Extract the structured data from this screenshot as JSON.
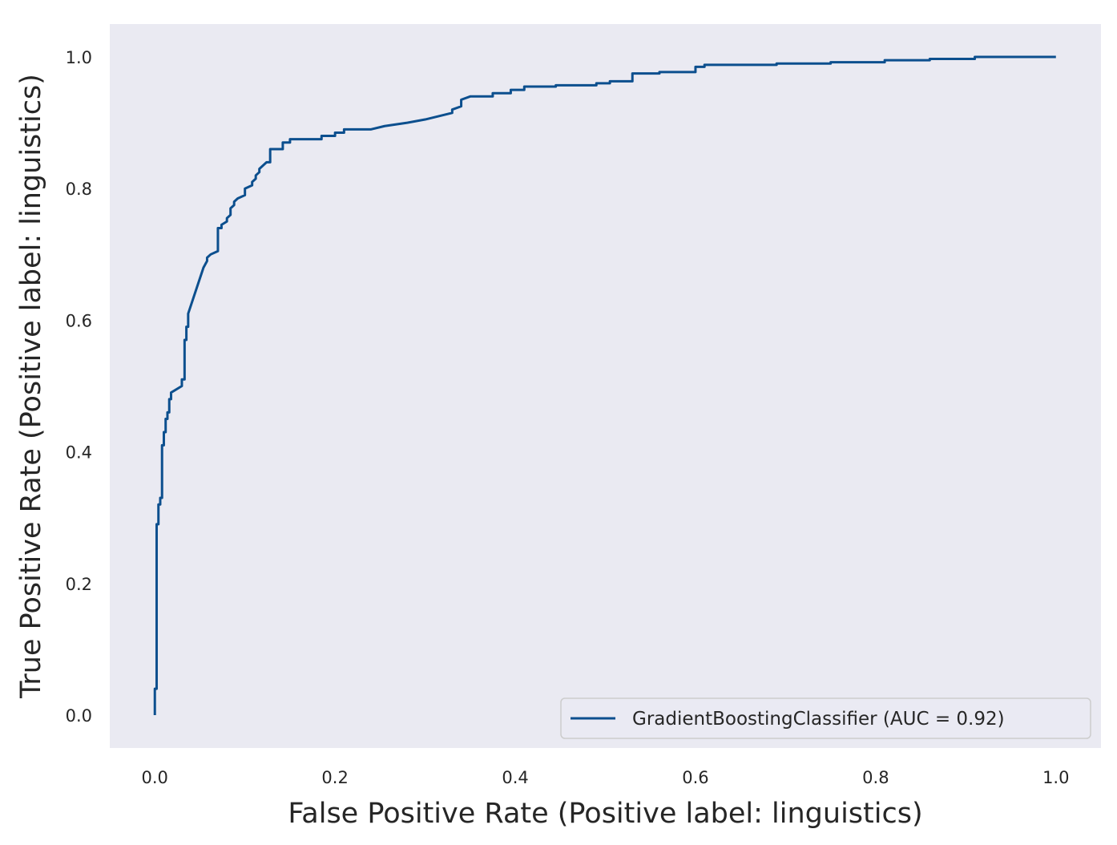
{
  "chart_data": {
    "type": "line",
    "title": "",
    "xlabel": "False Positive Rate (Positive label: linguistics)",
    "ylabel": "True Positive Rate (Positive label: linguistics)",
    "xlim": [
      -0.05,
      1.05
    ],
    "ylim": [
      -0.05,
      1.05
    ],
    "xticks": [
      0.0,
      0.2,
      0.4,
      0.6,
      0.8,
      1.0
    ],
    "yticks": [
      0.0,
      0.2,
      0.4,
      0.6,
      0.8,
      1.0
    ],
    "xtick_labels": [
      "0.0",
      "0.2",
      "0.4",
      "0.6",
      "0.8",
      "1.0"
    ],
    "ytick_labels": [
      "0.0",
      "0.2",
      "0.4",
      "0.6",
      "0.8",
      "1.0"
    ],
    "grid": false,
    "background": "#eaeaf2",
    "legend_position": "lower-right",
    "series": [
      {
        "name": "GradientBoostingClassifier (AUC = 0.92)",
        "color": "#0c4f8e",
        "x": [
          0.0,
          0.0,
          0.002,
          0.002,
          0.004,
          0.004,
          0.006,
          0.006,
          0.008,
          0.008,
          0.01,
          0.01,
          0.012,
          0.012,
          0.014,
          0.014,
          0.016,
          0.016,
          0.018,
          0.018,
          0.03,
          0.03,
          0.033,
          0.033,
          0.035,
          0.035,
          0.037,
          0.037,
          0.054,
          0.058,
          0.058,
          0.062,
          0.062,
          0.07,
          0.07,
          0.074,
          0.074,
          0.08,
          0.08,
          0.084,
          0.084,
          0.088,
          0.088,
          0.092,
          0.092,
          0.1,
          0.1,
          0.108,
          0.108,
          0.112,
          0.112,
          0.116,
          0.116,
          0.12,
          0.12,
          0.124,
          0.124,
          0.128,
          0.128,
          0.142,
          0.142,
          0.15,
          0.15,
          0.155,
          0.155,
          0.185,
          0.185,
          0.2,
          0.2,
          0.21,
          0.21,
          0.24,
          0.24,
          0.255,
          0.255,
          0.28,
          0.28,
          0.3,
          0.3,
          0.315,
          0.315,
          0.33,
          0.33,
          0.34,
          0.34,
          0.35,
          0.35,
          0.375,
          0.375,
          0.395,
          0.395,
          0.41,
          0.41,
          0.445,
          0.445,
          0.49,
          0.49,
          0.505,
          0.505,
          0.53,
          0.53,
          0.56,
          0.56,
          0.6,
          0.6,
          0.61,
          0.61,
          0.69,
          0.69,
          0.75,
          0.75,
          0.81,
          0.81,
          0.86,
          0.86,
          0.91,
          0.91,
          1.0
        ],
        "y": [
          0.0,
          0.04,
          0.04,
          0.29,
          0.29,
          0.32,
          0.32,
          0.33,
          0.33,
          0.41,
          0.41,
          0.43,
          0.43,
          0.45,
          0.45,
          0.46,
          0.46,
          0.48,
          0.48,
          0.49,
          0.5,
          0.51,
          0.51,
          0.57,
          0.57,
          0.59,
          0.59,
          0.61,
          0.68,
          0.69,
          0.695,
          0.7,
          0.7,
          0.705,
          0.74,
          0.74,
          0.745,
          0.75,
          0.755,
          0.76,
          0.77,
          0.775,
          0.78,
          0.785,
          0.785,
          0.79,
          0.8,
          0.805,
          0.81,
          0.815,
          0.82,
          0.825,
          0.83,
          0.835,
          0.835,
          0.84,
          0.84,
          0.84,
          0.86,
          0.86,
          0.87,
          0.87,
          0.875,
          0.875,
          0.875,
          0.875,
          0.88,
          0.88,
          0.885,
          0.885,
          0.89,
          0.89,
          0.89,
          0.895,
          0.895,
          0.9,
          0.9,
          0.905,
          0.905,
          0.91,
          0.91,
          0.915,
          0.92,
          0.925,
          0.935,
          0.94,
          0.94,
          0.94,
          0.945,
          0.945,
          0.95,
          0.95,
          0.955,
          0.955,
          0.957,
          0.957,
          0.96,
          0.96,
          0.963,
          0.963,
          0.975,
          0.975,
          0.977,
          0.977,
          0.985,
          0.985,
          0.988,
          0.988,
          0.99,
          0.99,
          0.992,
          0.992,
          0.995,
          0.995,
          0.997,
          0.997,
          1.0,
          1.0
        ]
      }
    ]
  }
}
